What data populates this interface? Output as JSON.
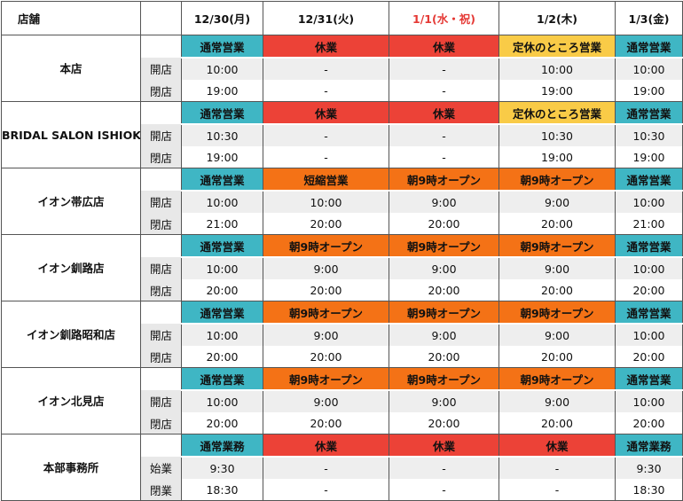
{
  "header": {
    "store": "店舗",
    "days": [
      {
        "label": "12/30(月)",
        "holiday": false
      },
      {
        "label": "12/31(火)",
        "holiday": false
      },
      {
        "label": "1/1(水・祝)",
        "holiday": true
      },
      {
        "label": "1/2(木)",
        "holiday": false
      },
      {
        "label": "1/3(金)",
        "holiday": false
      }
    ]
  },
  "colors": {
    "normal": "#3fb6c4",
    "closed": "#ec4237",
    "short": "#f47216",
    "regular_holiday": "#f9cb47",
    "holiday_text": "#e53935"
  },
  "stores": [
    {
      "name": "本店",
      "open_label": "開店",
      "close_label": "閉店",
      "status": [
        {
          "text": "通常営業",
          "kind": "normal"
        },
        {
          "text": "休業",
          "kind": "closed"
        },
        {
          "text": "休業",
          "kind": "closed"
        },
        {
          "text": "定休のところ営業",
          "kind": "regular"
        },
        {
          "text": "通常営業",
          "kind": "normal"
        }
      ],
      "open": [
        "10:00",
        "-",
        "-",
        "10:00",
        "10:00"
      ],
      "close": [
        "19:00",
        "-",
        "-",
        "19:00",
        "19:00"
      ]
    },
    {
      "name": "BRIDAL SALON ISHIOKA",
      "open_label": "開店",
      "close_label": "閉店",
      "status": [
        {
          "text": "通常営業",
          "kind": "normal"
        },
        {
          "text": "休業",
          "kind": "closed"
        },
        {
          "text": "休業",
          "kind": "closed"
        },
        {
          "text": "定休のところ営業",
          "kind": "regular"
        },
        {
          "text": "通常営業",
          "kind": "normal"
        }
      ],
      "open": [
        "10:30",
        "-",
        "-",
        "10:30",
        "10:30"
      ],
      "close": [
        "19:00",
        "-",
        "-",
        "19:00",
        "19:00"
      ]
    },
    {
      "name": "イオン帯広店",
      "open_label": "開店",
      "close_label": "閉店",
      "status": [
        {
          "text": "通常営業",
          "kind": "normal"
        },
        {
          "text": "短縮営業",
          "kind": "short"
        },
        {
          "text": "朝9時オープン",
          "kind": "short"
        },
        {
          "text": "朝9時オープン",
          "kind": "short"
        },
        {
          "text": "通常営業",
          "kind": "normal"
        }
      ],
      "open": [
        "10:00",
        "10:00",
        "9:00",
        "9:00",
        "10:00"
      ],
      "close": [
        "21:00",
        "20:00",
        "20:00",
        "20:00",
        "21:00"
      ]
    },
    {
      "name": "イオン釧路店",
      "open_label": "開店",
      "close_label": "閉店",
      "status": [
        {
          "text": "通常営業",
          "kind": "normal"
        },
        {
          "text": "朝9時オープン",
          "kind": "short"
        },
        {
          "text": "朝9時オープン",
          "kind": "short"
        },
        {
          "text": "朝9時オープン",
          "kind": "short"
        },
        {
          "text": "通常営業",
          "kind": "normal"
        }
      ],
      "open": [
        "10:00",
        "9:00",
        "9:00",
        "9:00",
        "10:00"
      ],
      "close": [
        "20:00",
        "20:00",
        "20:00",
        "20:00",
        "20:00"
      ]
    },
    {
      "name": "イオン釧路昭和店",
      "open_label": "開店",
      "close_label": "閉店",
      "status": [
        {
          "text": "通常営業",
          "kind": "normal"
        },
        {
          "text": "朝9時オープン",
          "kind": "short"
        },
        {
          "text": "朝9時オープン",
          "kind": "short"
        },
        {
          "text": "朝9時オープン",
          "kind": "short"
        },
        {
          "text": "通常営業",
          "kind": "normal"
        }
      ],
      "open": [
        "10:00",
        "9:00",
        "9:00",
        "9:00",
        "10:00"
      ],
      "close": [
        "20:00",
        "20:00",
        "20:00",
        "20:00",
        "20:00"
      ]
    },
    {
      "name": "イオン北見店",
      "open_label": "開店",
      "close_label": "閉店",
      "status": [
        {
          "text": "通常営業",
          "kind": "normal"
        },
        {
          "text": "朝9時オープン",
          "kind": "short"
        },
        {
          "text": "朝9時オープン",
          "kind": "short"
        },
        {
          "text": "朝9時オープン",
          "kind": "short"
        },
        {
          "text": "通常営業",
          "kind": "normal"
        }
      ],
      "open": [
        "10:00",
        "9:00",
        "9:00",
        "9:00",
        "10:00"
      ],
      "close": [
        "20:00",
        "20:00",
        "20:00",
        "20:00",
        "20:00"
      ]
    },
    {
      "name": "本部事務所",
      "open_label": "始業",
      "close_label": "閉業",
      "status": [
        {
          "text": "通常業務",
          "kind": "normal"
        },
        {
          "text": "休業",
          "kind": "closed"
        },
        {
          "text": "休業",
          "kind": "closed"
        },
        {
          "text": "休業",
          "kind": "closed"
        },
        {
          "text": "通常業務",
          "kind": "normal"
        }
      ],
      "open": [
        "9:30",
        "-",
        "-",
        "-",
        "9:30"
      ],
      "close": [
        "18:30",
        "-",
        "-",
        "-",
        "18:30"
      ]
    }
  ]
}
